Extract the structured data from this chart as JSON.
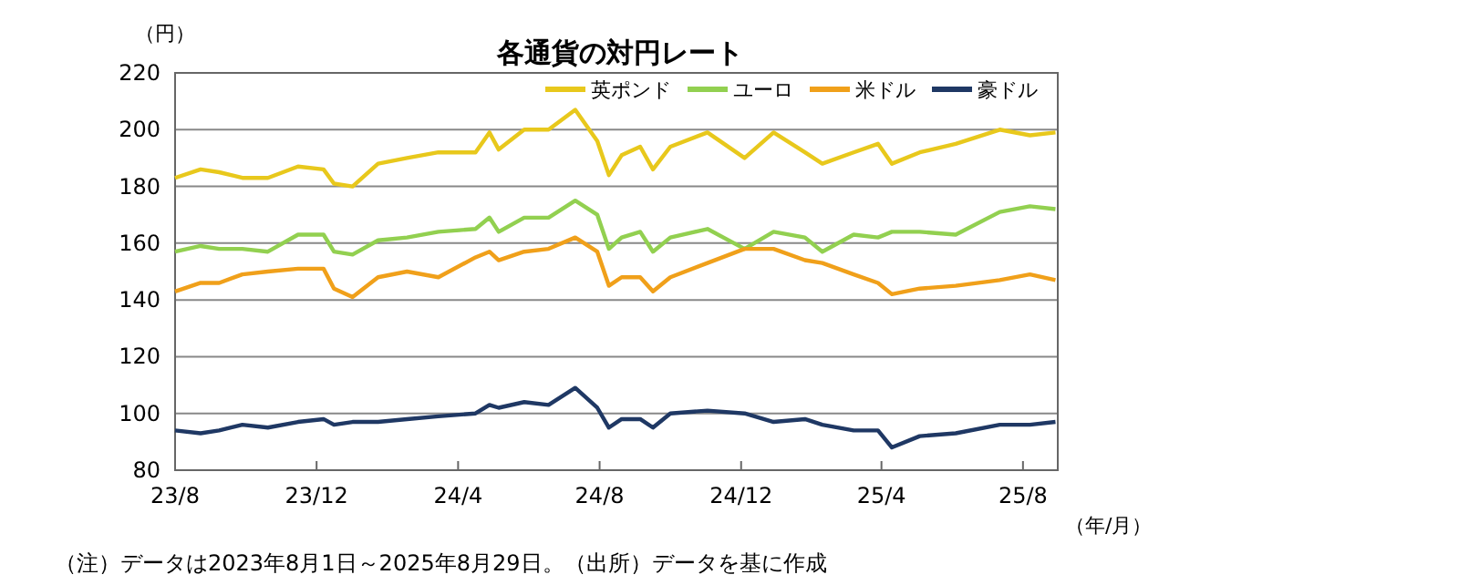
{
  "chart_data": {
    "type": "line",
    "title": "各通貨の対円レート",
    "ylabel": "（円）",
    "xlabel": "（年/月）",
    "x": [
      "2023-08-01",
      "2023-08-23",
      "2023-09-08",
      "2023-09-28",
      "2023-10-20",
      "2023-11-15",
      "2023-12-07",
      "2023-12-16",
      "2024-01-01",
      "2024-01-23",
      "2024-02-17",
      "2024-03-15",
      "2024-04-16",
      "2024-04-28",
      "2024-05-06",
      "2024-05-28",
      "2024-06-18",
      "2024-07-11",
      "2024-07-30",
      "2024-08-09",
      "2024-08-20",
      "2024-09-05",
      "2024-09-16",
      "2024-10-01",
      "2024-11-02",
      "2024-12-04",
      "2024-12-29",
      "2025-01-25",
      "2025-02-09",
      "2025-03-08",
      "2025-03-29",
      "2025-04-10",
      "2025-05-04",
      "2025-06-04",
      "2025-07-12",
      "2025-08-07",
      "2025-08-29"
    ],
    "series": [
      {
        "name": "英ポンド",
        "color": "#e8c81c",
        "values": [
          183,
          186,
          185,
          183,
          183,
          187,
          186,
          181,
          180,
          188,
          190,
          192,
          192,
          199,
          193,
          200,
          200,
          207,
          196,
          184,
          191,
          194,
          186,
          194,
          199,
          190,
          199,
          192,
          188,
          192,
          195,
          188,
          192,
          195,
          200,
          198,
          199
        ]
      },
      {
        "name": "ユーロ",
        "color": "#92d050",
        "values": [
          157,
          159,
          158,
          158,
          157,
          163,
          163,
          157,
          156,
          161,
          162,
          164,
          165,
          169,
          164,
          169,
          169,
          175,
          170,
          158,
          162,
          164,
          157,
          162,
          165,
          158,
          164,
          162,
          157,
          163,
          162,
          164,
          164,
          163,
          171,
          173,
          172
        ]
      },
      {
        "name": "米ドル",
        "color": "#f0a01a",
        "values": [
          143,
          146,
          146,
          149,
          150,
          151,
          151,
          144,
          141,
          148,
          150,
          148,
          155,
          157,
          154,
          157,
          158,
          162,
          157,
          145,
          148,
          148,
          143,
          148,
          153,
          158,
          158,
          154,
          153,
          149,
          146,
          142,
          144,
          145,
          147,
          149,
          147
        ]
      },
      {
        "name": "豪ドル",
        "color": "#1f3864",
        "values": [
          94,
          93,
          94,
          96,
          95,
          97,
          98,
          96,
          97,
          97,
          98,
          99,
          100,
          103,
          102,
          104,
          103,
          109,
          102,
          95,
          98,
          98,
          95,
          100,
          101,
          100,
          97,
          98,
          96,
          94,
          94,
          88,
          92,
          93,
          96,
          96,
          97
        ]
      }
    ],
    "ylim": [
      80,
      220
    ],
    "yticks": [
      80,
      100,
      120,
      140,
      160,
      180,
      200,
      220
    ],
    "xlim": [
      "2023-08-01",
      "2025-08-31"
    ],
    "xticks": [
      {
        "value": "2023-08",
        "label": "23/8"
      },
      {
        "value": "2023-12",
        "label": "23/12"
      },
      {
        "value": "2024-04",
        "label": "24/4"
      },
      {
        "value": "2024-08",
        "label": "24/8"
      },
      {
        "value": "2024-12",
        "label": "24/12"
      },
      {
        "value": "2025-04",
        "label": "25/4"
      },
      {
        "value": "2025-08",
        "label": "25/8"
      }
    ],
    "grid": "y",
    "legend": "top right",
    "marker": "none",
    "line_style": "solid",
    "annotations": [
      "（注）データは2023年8月1日～2025年8月29日。（出所）データを基に作成"
    ]
  }
}
